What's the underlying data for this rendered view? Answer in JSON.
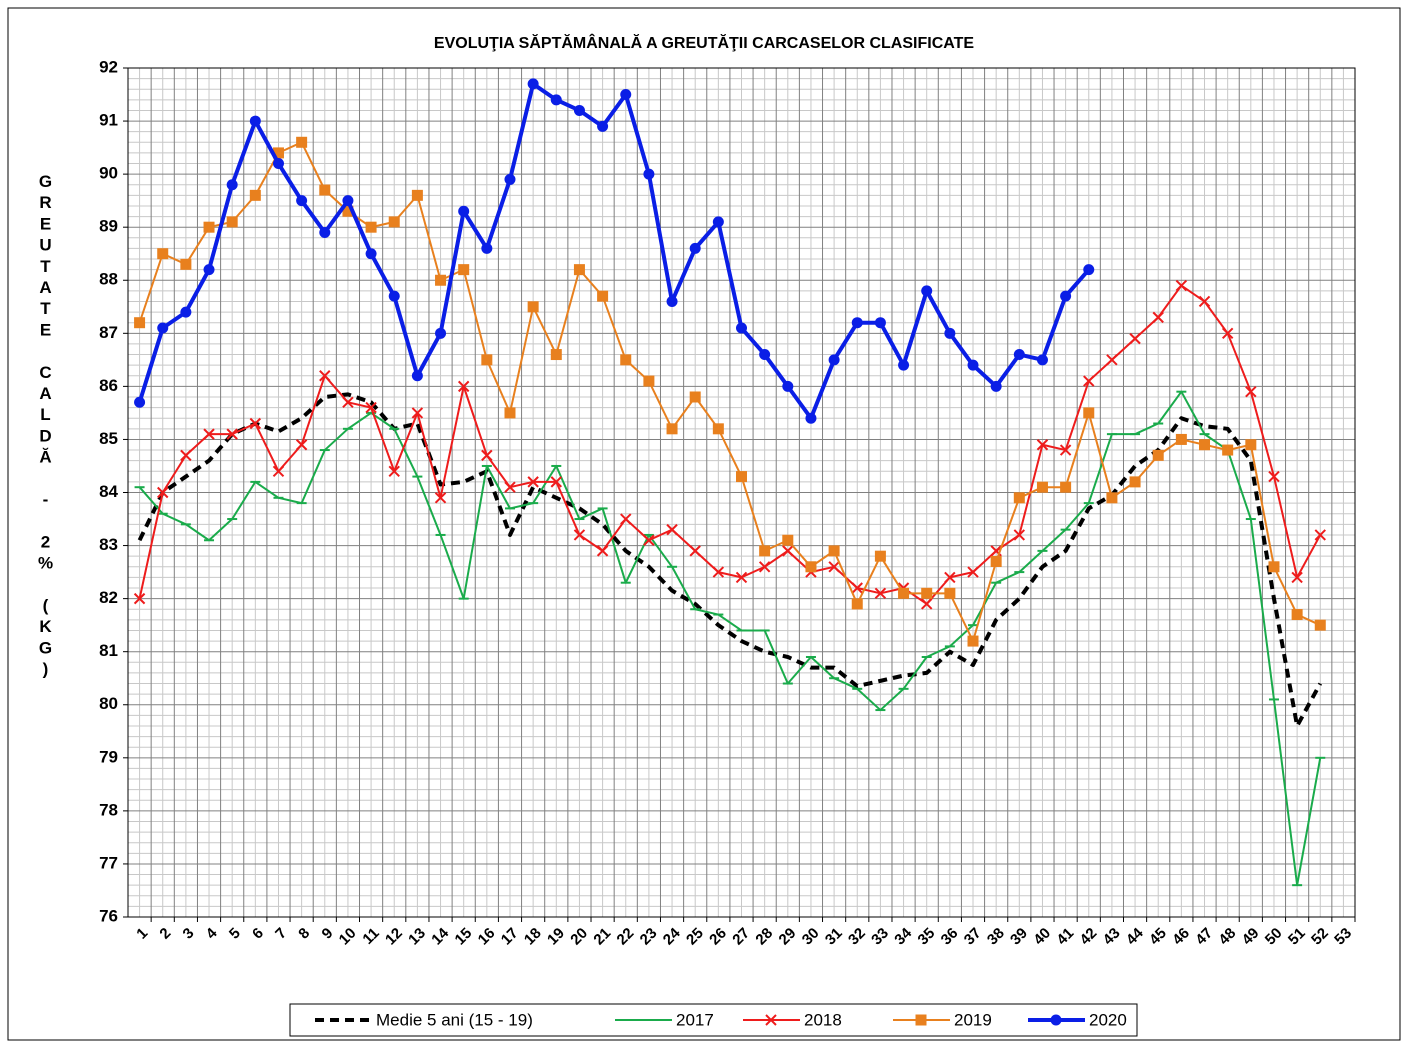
{
  "chart_data": {
    "type": "line",
    "title": "EVOLUŢIA SĂPTĂMÂNALĂ A GREUTĂŢII CARCASELOR CLASIFICATE",
    "y_axis_label": "GREUTATE CALDĂ - 2% (KG)",
    "categories": [
      "1",
      "2",
      "3",
      "4",
      "5",
      "6",
      "7",
      "8",
      "9",
      "10",
      "11",
      "12",
      "13",
      "14",
      "15",
      "16",
      "17",
      "18",
      "19",
      "20",
      "21",
      "22",
      "23",
      "24",
      "25",
      "26",
      "27",
      "28",
      "29",
      "30",
      "31",
      "32",
      "33",
      "34",
      "35",
      "36",
      "37",
      "38",
      "39",
      "40",
      "41",
      "42",
      "43",
      "44",
      "45",
      "46",
      "47",
      "48",
      "49",
      "50",
      "51",
      "52",
      "53"
    ],
    "ylim": [
      76,
      92
    ],
    "yticks": [
      76,
      77,
      78,
      79,
      80,
      81,
      82,
      83,
      84,
      85,
      86,
      87,
      88,
      89,
      90,
      91,
      92
    ],
    "grid": true,
    "legend": "bottom",
    "series": [
      {
        "name": "Medie 5 ani (15 - 19)",
        "color": "#000000",
        "line_style": "dashed",
        "marker": "none",
        "values": [
          83.1,
          84.0,
          84.3,
          84.6,
          85.1,
          85.3,
          85.15,
          85.4,
          85.8,
          85.85,
          85.7,
          85.2,
          85.3,
          84.15,
          84.2,
          84.4,
          83.2,
          84.1,
          83.9,
          83.7,
          83.4,
          82.9,
          82.6,
          82.15,
          81.9,
          81.5,
          81.2,
          81.0,
          80.9,
          80.7,
          80.7,
          80.35,
          80.45,
          80.55,
          80.6,
          81.0,
          80.75,
          81.6,
          82.0,
          82.6,
          82.9,
          83.7,
          83.95,
          84.5,
          84.8,
          85.4,
          85.25,
          85.2,
          84.6,
          82.0,
          79.6,
          80.4,
          null
        ]
      },
      {
        "name": "2017",
        "color": "#1aab4b",
        "line_style": "solid",
        "marker": "dash",
        "values": [
          84.1,
          83.6,
          83.4,
          83.1,
          83.5,
          84.2,
          83.9,
          83.8,
          84.8,
          85.2,
          85.5,
          85.2,
          84.3,
          83.2,
          82.0,
          84.5,
          83.7,
          83.8,
          84.5,
          83.5,
          83.7,
          82.3,
          83.2,
          82.6,
          81.8,
          81.7,
          81.4,
          81.4,
          80.4,
          80.9,
          80.5,
          80.3,
          79.9,
          80.3,
          80.9,
          81.1,
          81.5,
          82.3,
          82.5,
          82.9,
          83.3,
          83.8,
          85.1,
          85.1,
          85.3,
          85.9,
          85.1,
          84.8,
          83.5,
          80.1,
          76.6,
          79.0,
          null
        ]
      },
      {
        "name": "2018",
        "color": "#ee1c1c",
        "line_style": "solid",
        "marker": "x",
        "values": [
          82.0,
          84.0,
          84.7,
          85.1,
          85.1,
          85.3,
          84.4,
          84.9,
          86.2,
          85.7,
          85.6,
          84.4,
          85.5,
          83.9,
          86.0,
          84.7,
          84.1,
          84.2,
          84.2,
          83.2,
          82.9,
          83.5,
          83.1,
          83.3,
          82.9,
          82.5,
          82.4,
          82.6,
          82.9,
          82.5,
          82.6,
          82.2,
          82.1,
          82.2,
          81.9,
          82.4,
          82.5,
          82.9,
          83.2,
          84.9,
          84.8,
          86.1,
          86.5,
          86.9,
          87.3,
          87.9,
          87.6,
          87.0,
          85.9,
          84.3,
          82.4,
          83.2,
          null
        ]
      },
      {
        "name": "2019",
        "color": "#e8801e",
        "line_style": "solid",
        "marker": "square",
        "values": [
          87.2,
          88.5,
          88.3,
          89.0,
          89.1,
          89.6,
          90.4,
          90.6,
          89.7,
          89.3,
          89.0,
          89.1,
          89.6,
          88.0,
          88.2,
          86.5,
          85.5,
          87.5,
          86.6,
          88.2,
          87.7,
          86.5,
          86.1,
          85.2,
          85.8,
          85.2,
          84.3,
          82.9,
          83.1,
          82.6,
          82.9,
          81.9,
          82.8,
          82.1,
          82.1,
          82.1,
          81.2,
          82.7,
          83.9,
          84.1,
          84.1,
          85.5,
          83.9,
          84.2,
          84.7,
          85.0,
          84.9,
          84.8,
          84.9,
          82.6,
          81.7,
          81.5,
          null
        ]
      },
      {
        "name": "2020",
        "color": "#0a1ee6",
        "line_style": "solid",
        "marker": "circle",
        "values": [
          85.7,
          87.1,
          87.4,
          88.2,
          89.8,
          91.0,
          90.2,
          89.5,
          88.9,
          89.5,
          88.5,
          87.7,
          86.2,
          87.0,
          89.3,
          88.6,
          89.9,
          91.7,
          91.4,
          91.2,
          90.9,
          91.5,
          90.0,
          87.6,
          88.6,
          89.1,
          87.1,
          86.6,
          86.0,
          85.4,
          86.5,
          87.2,
          87.2,
          86.4,
          87.8,
          87.0,
          86.4,
          86.0,
          86.6,
          86.5,
          87.7,
          88.2,
          null,
          null,
          null,
          null,
          null,
          null,
          null,
          null,
          null,
          null,
          null
        ]
      }
    ]
  }
}
